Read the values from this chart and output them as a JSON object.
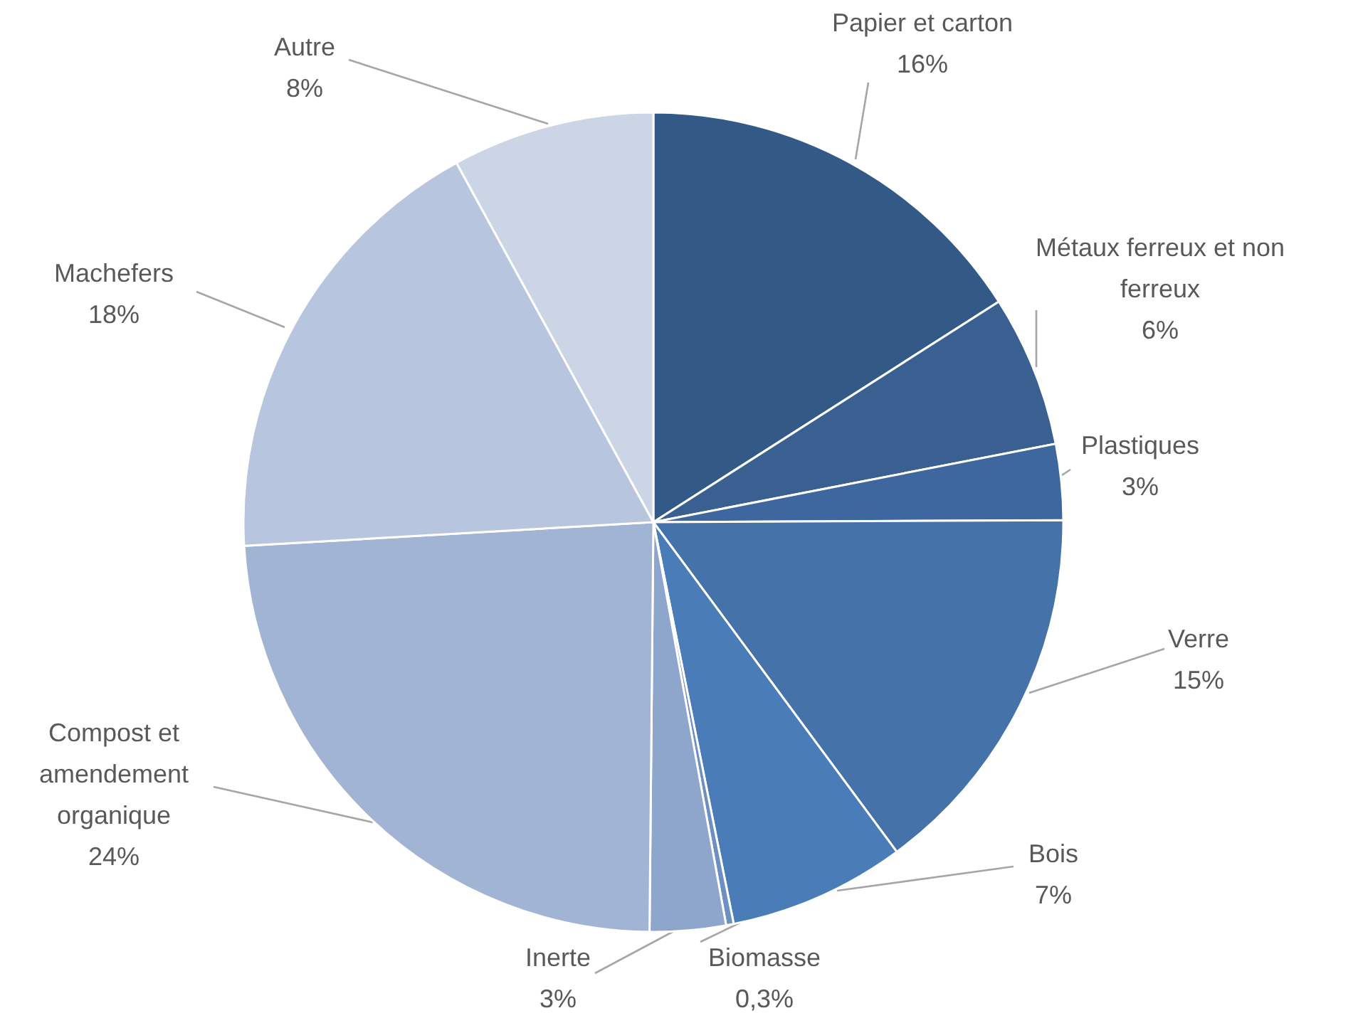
{
  "chart_data": {
    "type": "pie",
    "categories": [
      "Papier et carton",
      "Métaux ferreux et non ferreux",
      "Plastiques",
      "Verre",
      "Bois",
      "Biomasse",
      "Inerte",
      "Compost et amendement organique",
      "Machefers",
      "Autre"
    ],
    "values": [
      16,
      6,
      3,
      15,
      7,
      0.3,
      3,
      24,
      18,
      8
    ],
    "value_labels": [
      "16%",
      "6%",
      "3%",
      "15%",
      "7%",
      "0,3%",
      "3%",
      "24%",
      "18%",
      "8%"
    ],
    "colors": [
      "#335a87",
      "#3a5f91",
      "#3e679f",
      "#4472a9",
      "#4a7cb8",
      "#6d8fc4",
      "#8ea6cc",
      "#a2b4d4",
      "#b8c5de",
      "#cbd5e6"
    ]
  }
}
